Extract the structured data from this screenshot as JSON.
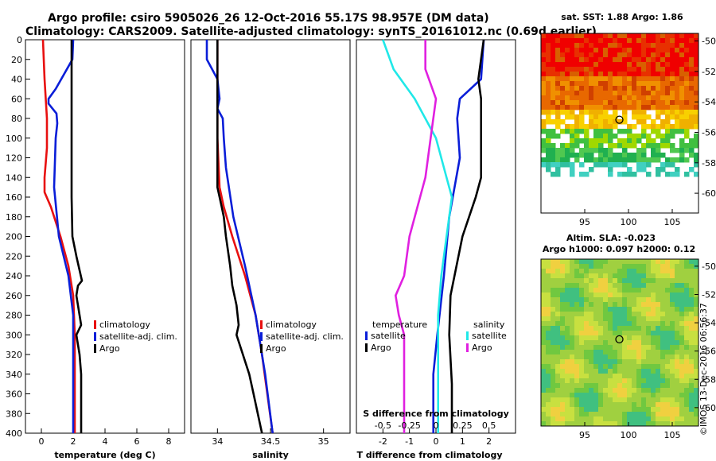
{
  "header": {
    "title_line1": "Argo profile: csiro 5905026_26 12-Oct-2016 55.17S 98.957E (DM data)",
    "title_line2": "Climatology: CARS2009. Satellite-adjusted climatology: synTS_20161012.nc (0.69d earlier)"
  },
  "watermark": "©IMOS 13-Dec-2016 06:56:37",
  "colors": {
    "red": "#e81010",
    "blue": "#0a1ed8",
    "black": "#000000",
    "magenta": "#e020e0",
    "cyan": "#20e8e8"
  },
  "chart_data": [
    {
      "type": "line",
      "name": "temperature-panel",
      "xlabel": "temperature (deg C)",
      "ylabel": "",
      "xlim": [
        -1,
        9
      ],
      "ylim": [
        400,
        0
      ],
      "x_ticks": [
        "0",
        "2",
        "4",
        "6",
        "8"
      ],
      "y_ticks": [
        "0",
        "20",
        "40",
        "60",
        "80",
        "100",
        "120",
        "140",
        "160",
        "180",
        "200",
        "220",
        "240",
        "260",
        "280",
        "300",
        "320",
        "340",
        "360",
        "380",
        "400"
      ],
      "legend": [
        "climatology",
        "satellite-adj. clim.",
        "Argo"
      ],
      "series": [
        {
          "name": "climatology",
          "color": "red",
          "depth": [
            0,
            40,
            80,
            110,
            140,
            155,
            170,
            200,
            230,
            260,
            300,
            340,
            400
          ],
          "values": [
            0.1,
            0.2,
            0.35,
            0.35,
            0.2,
            0.2,
            0.6,
            1.2,
            1.7,
            2.0,
            2.1,
            2.1,
            2.1
          ]
        },
        {
          "name": "satellite-adj. clim.",
          "color": "blue",
          "depth": [
            0,
            20,
            50,
            60,
            65,
            75,
            85,
            100,
            150,
            200,
            240,
            280,
            400
          ],
          "values": [
            2.0,
            1.95,
            0.9,
            0.45,
            0.45,
            0.95,
            1.0,
            0.9,
            0.8,
            1.1,
            1.7,
            2.0,
            2.0
          ]
        },
        {
          "name": "Argo",
          "color": "black",
          "depth": [
            0,
            20,
            60,
            100,
            160,
            200,
            220,
            245,
            250,
            260,
            270,
            290,
            300,
            320,
            340,
            400
          ],
          "values": [
            1.9,
            1.9,
            1.9,
            1.9,
            1.9,
            1.95,
            2.2,
            2.55,
            2.3,
            2.2,
            2.3,
            2.5,
            2.2,
            2.4,
            2.5,
            2.5
          ]
        }
      ]
    },
    {
      "type": "line",
      "name": "salinity-panel",
      "xlabel": "salinity",
      "xlim": [
        33.75,
        35.25
      ],
      "ylim": [
        400,
        0
      ],
      "x_ticks": [
        "34",
        "34.5",
        "35"
      ],
      "legend": [
        "climatology",
        "satellite-adj. clim.",
        "Argo"
      ],
      "series": [
        {
          "name": "climatology",
          "color": "red",
          "depth": [
            0,
            100,
            150,
            170,
            200,
            240,
            280,
            320,
            360,
            400
          ],
          "values": [
            34.0,
            34.0,
            34.02,
            34.06,
            34.14,
            34.26,
            34.36,
            34.42,
            34.47,
            34.52
          ]
        },
        {
          "name": "satellite-adj. clim.",
          "color": "blue",
          "depth": [
            0,
            20,
            40,
            60,
            70,
            80,
            100,
            130,
            180,
            230,
            280,
            340,
            400
          ],
          "values": [
            33.9,
            33.9,
            34.0,
            34.02,
            34.0,
            34.05,
            34.06,
            34.08,
            34.15,
            34.26,
            34.36,
            34.45,
            34.52
          ]
        },
        {
          "name": "Argo",
          "color": "black",
          "depth": [
            0,
            60,
            80,
            120,
            150,
            160,
            170,
            180,
            200,
            230,
            250,
            270,
            290,
            300,
            320,
            340,
            360,
            380,
            400
          ],
          "values": [
            34.0,
            34.0,
            34.0,
            34.0,
            34.0,
            34.02,
            34.04,
            34.06,
            34.08,
            34.12,
            34.14,
            34.18,
            34.2,
            34.18,
            34.24,
            34.3,
            34.34,
            34.38,
            34.42
          ]
        }
      ]
    },
    {
      "type": "line",
      "name": "difference-panel",
      "xlabel": "T difference from climatology",
      "x2label": "S difference from climatology",
      "xlim": [
        -3,
        3
      ],
      "ylim": [
        400,
        0
      ],
      "x_ticks": [
        "-2",
        "-1",
        "0",
        "1",
        "2"
      ],
      "x2_ticks": [
        "-0.5",
        "-0.25",
        "0",
        "0.25",
        "0.5"
      ],
      "legend_temperature_title": "temperature",
      "legend_salinity_title": "salinity",
      "legend": [
        "satellite",
        "Argo",
        "satellite",
        "Argo"
      ],
      "series": [
        {
          "name": "T satellite",
          "color": "blue",
          "depth": [
            0,
            40,
            60,
            80,
            120,
            180,
            240,
            300,
            340,
            400
          ],
          "values": [
            1.8,
            1.7,
            0.9,
            0.8,
            0.9,
            0.5,
            0.3,
            0.05,
            -0.1,
            -0.1
          ]
        },
        {
          "name": "T Argo",
          "color": "black",
          "depth": [
            0,
            40,
            60,
            100,
            140,
            160,
            200,
            240,
            260,
            300,
            350,
            400
          ],
          "values": [
            1.8,
            1.6,
            1.7,
            1.7,
            1.7,
            1.5,
            1.0,
            0.7,
            0.55,
            0.5,
            0.6,
            0.6
          ]
        },
        {
          "name": "S satellite",
          "color": "cyan",
          "depth": [
            0,
            30,
            60,
            100,
            140,
            160,
            200,
            240,
            280,
            340,
            400
          ],
          "values": [
            -0.5,
            -0.4,
            -0.2,
            0.0,
            0.1,
            0.15,
            0.1,
            0.05,
            0.02,
            0.02,
            0.02
          ]
        },
        {
          "name": "S Argo",
          "color": "magenta",
          "depth": [
            0,
            30,
            60,
            100,
            140,
            200,
            240,
            260,
            280,
            300,
            340,
            400
          ],
          "values": [
            -0.1,
            -0.1,
            0.0,
            -0.05,
            -0.1,
            -0.25,
            -0.3,
            -0.38,
            -0.35,
            -0.3,
            -0.3,
            -0.3
          ]
        }
      ]
    },
    {
      "type": "heatmap",
      "name": "sst-map",
      "title": "sat. SST: 1.88 Argo: 1.86",
      "x_ticks": [
        "95",
        "100",
        "105"
      ],
      "y_ticks": [
        "-50",
        "-52",
        "-54",
        "-56",
        "-58",
        "-60"
      ],
      "marker_lon": 98.957,
      "marker_lat": -55.17
    },
    {
      "type": "heatmap",
      "name": "sla-map",
      "title_line1": "Altim. SLA: -0.023",
      "title_line2": "Argo h1000: 0.097 h2000: 0.12",
      "x_ticks": [
        "95",
        "100",
        "105"
      ],
      "y_ticks": [
        "-50",
        "-52",
        "-54",
        "-56",
        "-58",
        "-60"
      ],
      "marker_lon": 98.957,
      "marker_lat": -55.17
    }
  ]
}
